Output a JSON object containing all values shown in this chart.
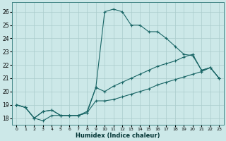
{
  "background_color": "#cce8e8",
  "grid_color": "#aacccc",
  "line_color": "#1a6666",
  "xlabel": "Humidex (Indice chaleur)",
  "xlim": [
    -0.5,
    23.5
  ],
  "ylim": [
    17.5,
    26.7
  ],
  "xticks": [
    0,
    1,
    2,
    3,
    4,
    5,
    6,
    7,
    8,
    9,
    10,
    11,
    12,
    13,
    14,
    15,
    16,
    17,
    18,
    19,
    20,
    21,
    22,
    23
  ],
  "yticks": [
    18,
    19,
    20,
    21,
    22,
    23,
    24,
    25,
    26
  ],
  "line1_x": [
    0,
    1,
    2,
    3,
    4,
    5,
    6,
    7,
    8,
    9,
    10,
    11,
    12,
    13,
    14,
    15,
    16,
    17,
    18,
    19,
    20,
    21,
    22,
    23
  ],
  "line1_y": [
    19.0,
    18.8,
    18.0,
    17.8,
    18.2,
    18.2,
    18.2,
    18.2,
    18.5,
    20.3,
    26.0,
    26.2,
    26.0,
    25.0,
    25.0,
    24.5,
    24.5,
    24.0,
    23.4,
    22.8,
    22.7,
    21.6,
    21.8,
    21.0
  ],
  "line2_x": [
    0,
    1,
    2,
    3,
    4,
    5,
    6,
    7,
    8,
    9,
    10,
    11,
    12,
    13,
    14,
    15,
    16,
    17,
    18,
    19,
    20,
    21,
    22,
    23
  ],
  "line2_y": [
    19.0,
    18.8,
    18.0,
    18.5,
    18.6,
    18.2,
    18.2,
    18.2,
    18.4,
    20.3,
    20.0,
    20.4,
    20.7,
    21.0,
    21.3,
    21.6,
    21.9,
    22.1,
    22.3,
    22.6,
    22.8,
    21.6,
    21.8,
    21.0
  ],
  "line3_x": [
    0,
    1,
    2,
    3,
    4,
    5,
    6,
    7,
    8,
    9,
    10,
    11,
    12,
    13,
    14,
    15,
    16,
    17,
    18,
    19,
    20,
    21,
    22,
    23
  ],
  "line3_y": [
    19.0,
    18.8,
    18.0,
    18.5,
    18.6,
    18.2,
    18.2,
    18.2,
    18.4,
    19.3,
    19.3,
    19.4,
    19.6,
    19.8,
    20.0,
    20.2,
    20.5,
    20.7,
    20.9,
    21.1,
    21.3,
    21.5,
    21.8,
    21.0
  ]
}
